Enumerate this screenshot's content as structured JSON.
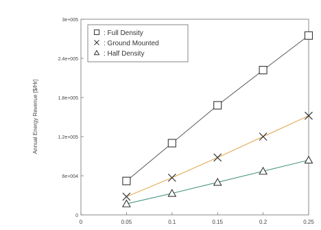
{
  "chart_data": {
    "type": "line",
    "ylabel": "Annual Energy Revenue [$/Hr]",
    "x_ticks": [
      "0",
      "0.05",
      "0.1",
      "0.15",
      "0.2",
      "0.25"
    ],
    "y_ticks": [
      "0",
      "6e+004",
      "1.2e+005",
      "1.8e+005",
      "2.4e+005",
      "3e+005"
    ],
    "xlim": [
      0,
      0.25
    ],
    "ylim": [
      0,
      300000
    ],
    "x": [
      0.05,
      0.1,
      0.15,
      0.2,
      0.25
    ],
    "legend_position": "top-left",
    "series": [
      {
        "name": "Full Density",
        "legend_label": ": Full Density",
        "marker": "square",
        "color": "#333333",
        "line_color": "#555555",
        "values": [
          52000,
          110000,
          168000,
          222000,
          275000
        ]
      },
      {
        "name": "Ground Mounted",
        "legend_label": ": Ground Mounted",
        "marker": "x",
        "color": "#333333",
        "line_color": "#e0a040",
        "values": [
          28000,
          57000,
          88000,
          120000,
          152000
        ]
      },
      {
        "name": "Half Density",
        "legend_label": ": Half Density",
        "marker": "triangle",
        "color": "#333333",
        "line_color": "#3a8a78",
        "values": [
          17000,
          33000,
          50000,
          67000,
          84000
        ]
      }
    ]
  }
}
